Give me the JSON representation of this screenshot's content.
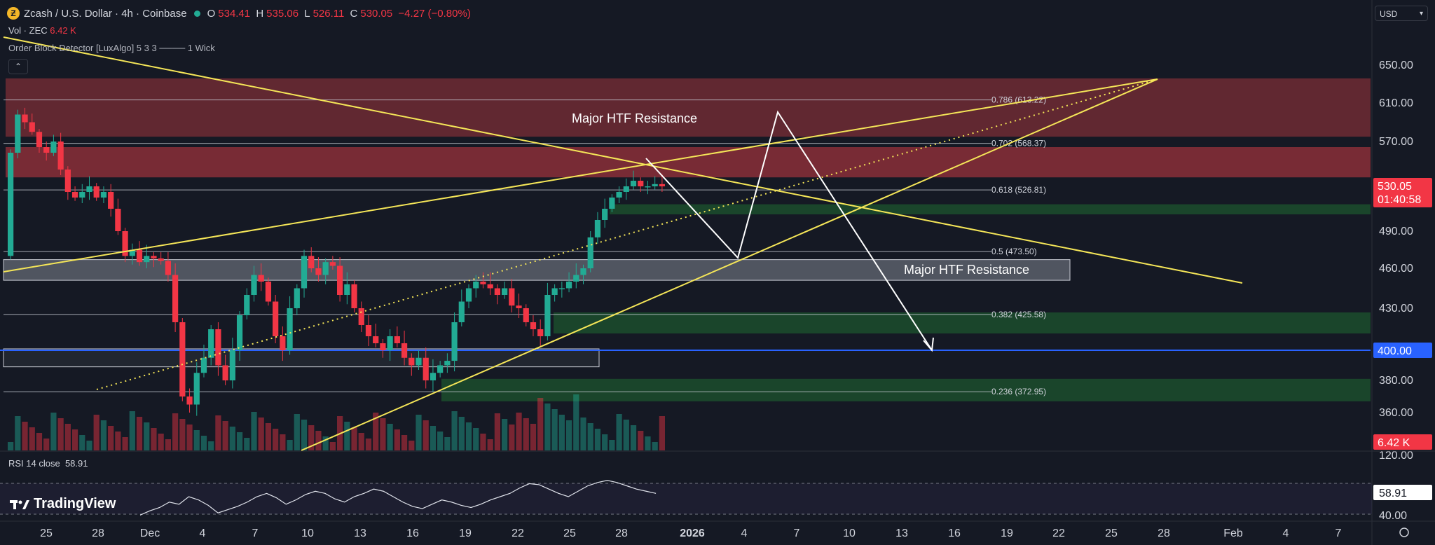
{
  "header": {
    "symbol": "Zcash / U.S. Dollar · 4h · Coinbase",
    "logo_letter": "Ƶ",
    "open_label": "O",
    "open": "534.41",
    "high_label": "H",
    "high": "535.06",
    "low_label": "L",
    "low": "526.11",
    "close_label": "C",
    "close": "530.05",
    "change": "−4.27 (−0.80%)",
    "vol_label": "Vol · ZEC",
    "vol_value": "6.42 K",
    "indicator": "Order Block Detector [LuxAlgo] 5 3 3 ──── 1 Wick",
    "collapse_icon": "chevron-up-icon"
  },
  "currency": "USD",
  "rsi": {
    "label": "RSI 14 close",
    "value": "58.91"
  },
  "brand": "TradingView",
  "settings_icon": "gear-icon",
  "colors": {
    "bg": "#151924",
    "bull": "#22ab94",
    "bear": "#f23645",
    "trend": "#f5e658",
    "resistance_zone": "#7b2d35",
    "green_zone": "#1b4a2c",
    "blue_line": "#2962ff",
    "label_red": "#f23645"
  },
  "chart_data": {
    "type": "candlestick",
    "y_axis": {
      "min": 340,
      "max": 660,
      "ticks": [
        650,
        610,
        570,
        530,
        490,
        460,
        430,
        400,
        380,
        360
      ]
    },
    "y_tick_labels": [
      "650.00",
      "610.00",
      "570.00",
      "530.00",
      "490.00",
      "460.00",
      "430.00",
      "400.00",
      "380.00",
      "360.00"
    ],
    "x_tick_labels": [
      "25",
      "28",
      "Dec",
      "4",
      "7",
      "10",
      "13",
      "16",
      "19",
      "22",
      "25",
      "28",
      "2026",
      "4",
      "7",
      "10",
      "13",
      "16",
      "19",
      "22",
      "25",
      "28",
      "Feb",
      "4",
      "7"
    ],
    "price_labels": {
      "last": "530.05",
      "countdown": "01:40:58",
      "level_400": "400.00",
      "volume": "6.42 K",
      "volume_axis": "120.00",
      "rsi_value": "58.91",
      "rsi_axis": "40.00"
    },
    "fib_levels": [
      {
        "label": "0.786 (613.22)",
        "value": 613.22
      },
      {
        "label": "0.702 (568.37)",
        "value": 568.37
      },
      {
        "label": "0.618 (526.81)",
        "value": 526.81
      },
      {
        "label": "0.5 (473.50)",
        "value": 473.5
      },
      {
        "label": "0.382 (425.58)",
        "value": 425.58
      },
      {
        "label": "0.236 (372.95)",
        "value": 372.95
      }
    ],
    "zones": [
      {
        "name": "resistance-zone",
        "from": 575,
        "to": 636
      },
      {
        "name": "resistance-zone-2",
        "from": 538,
        "to": 565
      },
      {
        "name": "order-block-bull",
        "from": 505,
        "to": 514
      },
      {
        "name": "support-box",
        "from": 451,
        "to": 467
      },
      {
        "name": "order-block-bull-2",
        "from": 412,
        "to": 427
      },
      {
        "name": "order-block-bull-3",
        "from": 367,
        "to": 381
      },
      {
        "name": "demand-box",
        "from": 389,
        "to": 401
      }
    ],
    "annotations": [
      {
        "text": "Major HTF Resistance",
        "x_date": "Dec 10",
        "y": 597
      },
      {
        "text": "Major HTF Resistance",
        "x_date": "Jan 10",
        "y": 459
      }
    ],
    "levels": {
      "horizontal": 400
    },
    "candles": {
      "note_open": 470,
      "closes": [
        560,
        598,
        590,
        580,
        565,
        560,
        570,
        545,
        525,
        520,
        525,
        530,
        520,
        525,
        510,
        490,
        470,
        475,
        465,
        470,
        468,
        466,
        455,
        420,
        370,
        365,
        385,
        395,
        415,
        390,
        380,
        400,
        425,
        440,
        455,
        450,
        435,
        410,
        400,
        430,
        445,
        470,
        460,
        455,
        465,
        462,
        440,
        448,
        430,
        418,
        410,
        405,
        400,
        410,
        405,
        395,
        390,
        395,
        380,
        385,
        390,
        393,
        420,
        435,
        445,
        450,
        448,
        445,
        440,
        445,
        432,
        430,
        420,
        415,
        410,
        440,
        445,
        445,
        450,
        455,
        460,
        485,
        500,
        510,
        520,
        525,
        530,
        535,
        530,
        530,
        532,
        530
      ]
    },
    "rsi_series": [
      38,
      42,
      45,
      50,
      48,
      55,
      52,
      47,
      40,
      43,
      46,
      50,
      55,
      58,
      54,
      48,
      52,
      57,
      60,
      58,
      53,
      50,
      55,
      58,
      62,
      60,
      55,
      50,
      46,
      44,
      48,
      52,
      50,
      47,
      45,
      48,
      52,
      55,
      58,
      63,
      67,
      66,
      62,
      58,
      55,
      60,
      65,
      68,
      70,
      68,
      65,
      62,
      60,
      58
    ]
  }
}
